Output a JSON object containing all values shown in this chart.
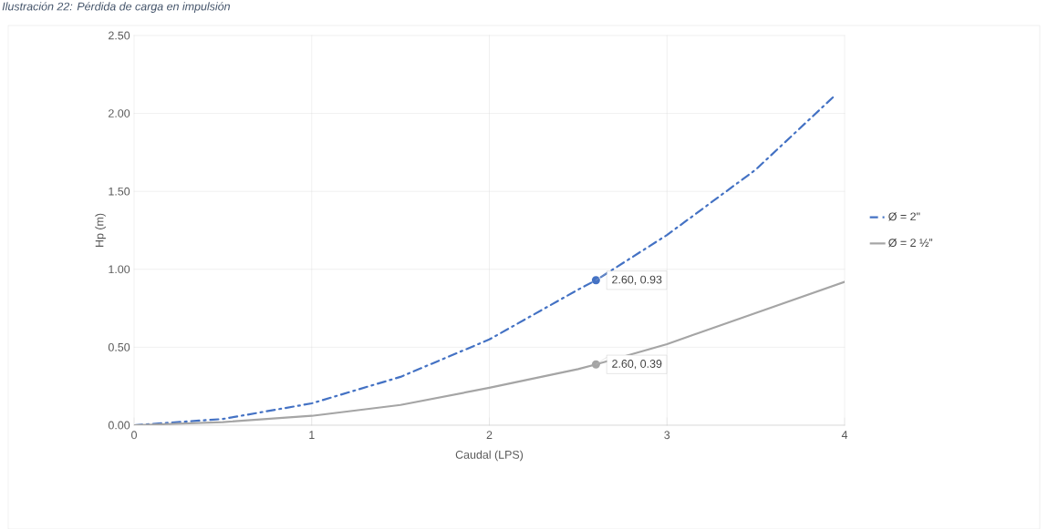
{
  "chart_data": {
    "type": "line",
    "title": "Ilustración 22: Pérdida de carga en impulsión",
    "xlabel": "Caudal (LPS)",
    "ylabel": "Hp (m)",
    "series": [
      {
        "name": "Ø = 2\"",
        "color": "#4472c4",
        "line_style": "dashed",
        "x": [
          0,
          0.5,
          1,
          1.5,
          2,
          2.5,
          2.6,
          3,
          3.5,
          3.95
        ],
        "values": [
          0,
          0.04,
          0.14,
          0.31,
          0.55,
          0.87,
          0.93,
          1.22,
          1.64,
          2.12
        ]
      },
      {
        "name": "Ø = 2 ½”",
        "color": "#a5a5a5",
        "line_style": "solid",
        "x": [
          0,
          0.5,
          1,
          1.5,
          2,
          2.5,
          2.6,
          3,
          3.5,
          4
        ],
        "values": [
          0,
          0.02,
          0.06,
          0.13,
          0.24,
          0.36,
          0.39,
          0.52,
          0.72,
          0.92
        ]
      }
    ],
    "annotations": [
      {
        "text": "2.60, 0.93",
        "x": 2.6,
        "y": 0.93
      },
      {
        "text": "2.60, 0.39",
        "x": 2.6,
        "y": 0.39
      }
    ],
    "xlim": [
      0,
      4
    ],
    "ylim": [
      0,
      2.5
    ],
    "xticks": [
      0,
      1,
      2,
      3,
      4
    ],
    "yticks": [
      {
        "value": 0,
        "label": "0.00"
      },
      {
        "value": 0.5,
        "label": "0.50"
      },
      {
        "value": 1,
        "label": "1.00"
      },
      {
        "value": 1.5,
        "label": "1.50"
      },
      {
        "value": 2,
        "label": "2.00"
      },
      {
        "value": 2.5,
        "label": "2.50"
      }
    ],
    "grid": true,
    "legend": "right",
    "marker": "none"
  }
}
